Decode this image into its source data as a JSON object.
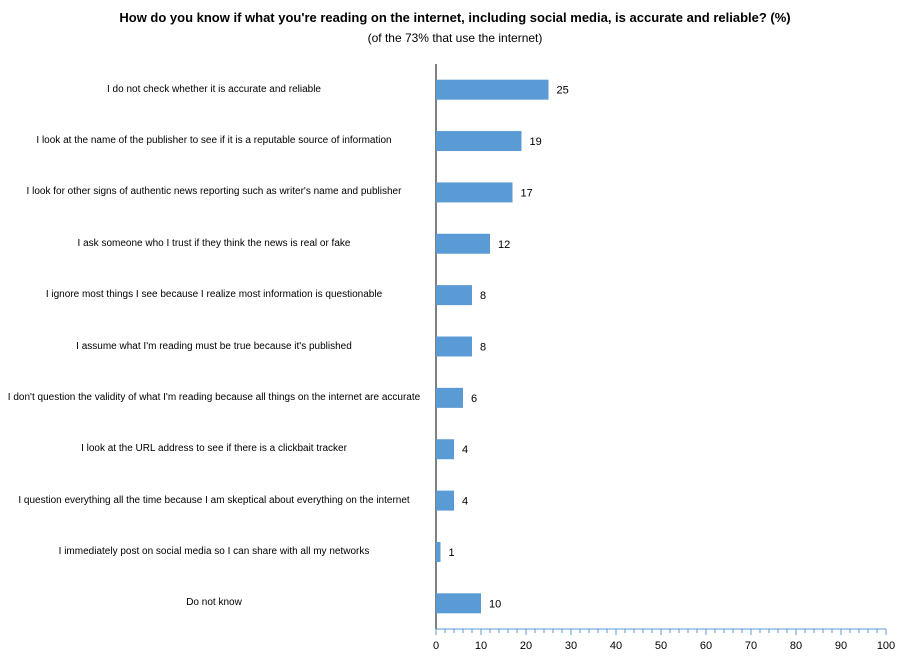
{
  "title": "How do you know if what you're reading on the internet, including social media, is accurate and reliable? (%)",
  "subtitle": "(of the 73% that use the internet)",
  "colors": {
    "bar": "#5b9bd5",
    "axis": "#5b9bd5"
  },
  "chart_data": {
    "type": "bar",
    "orientation": "horizontal",
    "categories": [
      "I do not check whether it is accurate and reliable",
      "I look at the name of the publisher to see if it is a reputable source of information",
      "I look for other signs of authentic news reporting such as writer's name and publisher",
      "I ask someone who I trust if they think the news is real or fake",
      "I ignore most things I see because I realize most information is questionable",
      "I assume what I'm reading must be true because it's published",
      "I don't question the validity of what I'm reading because all things on the internet are accurate",
      "I look at the URL address to see if there is a clickbait tracker",
      "I question everything all the time because I am skeptical about everything on the internet",
      "I immediately post on social media so I can share with all my networks",
      "Do not know"
    ],
    "values": [
      25,
      19,
      17,
      12,
      8,
      8,
      6,
      4,
      4,
      1,
      10
    ],
    "xlim": [
      0,
      100
    ],
    "xticks": [
      0,
      10,
      20,
      30,
      40,
      50,
      60,
      70,
      80,
      90,
      100
    ],
    "grid": false,
    "legend": "none",
    "data_labels": true
  }
}
